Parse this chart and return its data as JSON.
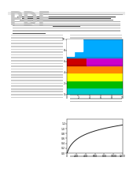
{
  "page_bg": "#ffffff",
  "fig1_colors": {
    "bath_top": "#00aaff",
    "ledge": "#cc00cc",
    "red_left": "#cc0000",
    "orange_right": "#ff8800",
    "yellow": "#ffff00",
    "green": "#00bb00",
    "cyan_bottom": "#00cccc",
    "side_blue": "#44aacc"
  },
  "fig1_xlim": [
    0,
    10
  ],
  "fig1_ylim": [
    0,
    10
  ],
  "fig2_xlim": [
    0,
    1200
  ],
  "fig2_ylim": [
    0,
    1.4
  ],
  "curve_color": "#222222"
}
